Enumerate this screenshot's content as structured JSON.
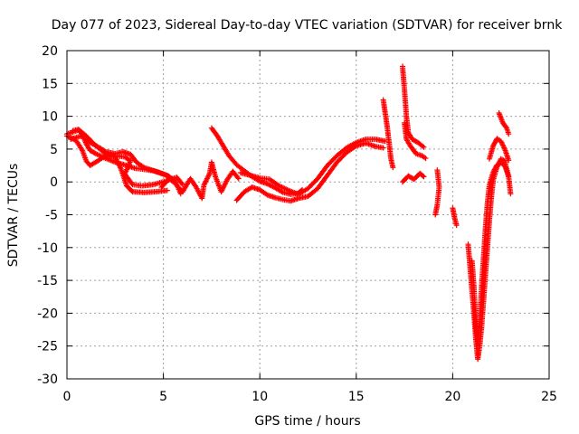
{
  "chart_data": {
    "type": "scatter",
    "title": "Day 077 of 2023, Sidereal Day-to-day VTEC variation (SDTVAR) for receiver brnk",
    "xlabel": "GPS time / hours",
    "ylabel": "SDTVAR / TECUs",
    "xlim": [
      0,
      25
    ],
    "ylim": [
      -30,
      20
    ],
    "xticks": [
      0,
      5,
      10,
      15,
      20,
      25
    ],
    "yticks": [
      20,
      15,
      10,
      5,
      0,
      -5,
      -10,
      -15,
      -20,
      -25,
      -30
    ],
    "grid": true,
    "marker": "plus",
    "color": "#ff0000",
    "tracks": [
      [
        [
          0.0,
          7.3
        ],
        [
          0.3,
          7.6
        ],
        [
          0.6,
          7.9
        ],
        [
          0.8,
          7.2
        ],
        [
          1.0,
          5.8
        ],
        [
          1.2,
          4.8
        ],
        [
          1.5,
          4.3
        ],
        [
          2.0,
          3.6
        ],
        [
          2.5,
          3.0
        ],
        [
          3.0,
          2.6
        ],
        [
          3.5,
          2.1
        ],
        [
          4.0,
          1.9
        ],
        [
          4.5,
          1.7
        ],
        [
          5.0,
          1.2
        ],
        [
          5.3,
          0.8
        ]
      ],
      [
        [
          0.0,
          7.0
        ],
        [
          0.3,
          6.6
        ],
        [
          0.5,
          6.2
        ],
        [
          0.8,
          4.8
        ],
        [
          1.0,
          3.2
        ],
        [
          1.2,
          2.5
        ],
        [
          1.6,
          3.2
        ],
        [
          2.0,
          4.0
        ],
        [
          2.5,
          3.8
        ],
        [
          2.8,
          2.0
        ],
        [
          3.1,
          -0.6
        ],
        [
          3.4,
          -1.5
        ],
        [
          4.0,
          -1.6
        ],
        [
          4.6,
          -1.5
        ],
        [
          5.2,
          -1.3
        ]
      ],
      [
        [
          0.2,
          6.5
        ],
        [
          0.5,
          6.8
        ],
        [
          0.8,
          7.0
        ],
        [
          1.2,
          6.0
        ],
        [
          1.7,
          5.2
        ],
        [
          2.0,
          4.6
        ],
        [
          2.5,
          4.3
        ],
        [
          2.9,
          4.6
        ],
        [
          3.3,
          4.2
        ],
        [
          3.6,
          3.0
        ],
        [
          4.0,
          2.2
        ],
        [
          4.6,
          1.6
        ],
        [
          5.2,
          1.0
        ],
        [
          5.6,
          0.2
        ],
        [
          5.9,
          -1.8
        ]
      ],
      [
        [
          0.3,
          7.8
        ],
        [
          0.6,
          8.0
        ],
        [
          1.0,
          7.0
        ],
        [
          1.5,
          5.5
        ],
        [
          2.0,
          4.3
        ],
        [
          2.5,
          4.0
        ],
        [
          3.0,
          3.8
        ],
        [
          3.3,
          3.2
        ],
        [
          3.0,
          1.2
        ],
        [
          3.4,
          -0.4
        ],
        [
          3.9,
          -0.6
        ],
        [
          4.5,
          -0.4
        ],
        [
          5.2,
          0.2
        ],
        [
          5.7,
          0.7
        ],
        [
          6.0,
          -0.4
        ]
      ],
      [
        [
          4.9,
          -0.8
        ],
        [
          5.3,
          0.5
        ],
        [
          5.6,
          -0.2
        ],
        [
          6.0,
          -1.5
        ],
        [
          6.4,
          0.5
        ],
        [
          6.7,
          -0.8
        ],
        [
          7.0,
          -2.5
        ],
        [
          7.1,
          -0.5
        ],
        [
          7.4,
          1.3
        ],
        [
          7.5,
          3.0
        ],
        [
          7.7,
          0.8
        ],
        [
          8.0,
          -1.5
        ],
        [
          8.3,
          0.3
        ],
        [
          8.6,
          1.6
        ],
        [
          8.9,
          0.5
        ]
      ],
      [
        [
          7.5,
          8.2
        ],
        [
          7.8,
          7.0
        ],
        [
          8.1,
          5.5
        ],
        [
          8.4,
          4.0
        ],
        [
          8.8,
          2.6
        ],
        [
          9.2,
          1.7
        ],
        [
          9.6,
          0.8
        ],
        [
          10.0,
          0.1
        ],
        [
          10.4,
          -0.3
        ],
        [
          10.8,
          -0.9
        ],
        [
          11.2,
          -1.6
        ],
        [
          11.6,
          -1.9
        ],
        [
          12.0,
          -1.7
        ],
        [
          12.2,
          -1.2
        ]
      ],
      [
        [
          8.8,
          -2.8
        ],
        [
          9.2,
          -1.5
        ],
        [
          9.6,
          -0.8
        ],
        [
          10.0,
          -1.2
        ],
        [
          10.4,
          -2.0
        ],
        [
          10.8,
          -2.4
        ],
        [
          11.2,
          -2.7
        ],
        [
          11.6,
          -2.9
        ],
        [
          12.0,
          -2.5
        ],
        [
          12.5,
          -2.2
        ],
        [
          13.0,
          -1.0
        ],
        [
          13.5,
          1.0
        ],
        [
          14.0,
          3.0
        ],
        [
          14.5,
          4.5
        ],
        [
          15.0,
          5.5
        ],
        [
          15.5,
          5.9
        ],
        [
          16.0,
          5.4
        ],
        [
          16.4,
          5.2
        ]
      ],
      [
        [
          9.0,
          1.4
        ],
        [
          9.5,
          1.0
        ],
        [
          10.0,
          0.6
        ],
        [
          10.5,
          0.4
        ],
        [
          11.0,
          -0.6
        ],
        [
          11.5,
          -1.3
        ],
        [
          12.0,
          -1.9
        ],
        [
          12.5,
          -1.0
        ],
        [
          13.0,
          0.5
        ],
        [
          13.5,
          2.5
        ],
        [
          14.0,
          4.0
        ],
        [
          14.5,
          5.2
        ],
        [
          15.0,
          6.0
        ],
        [
          15.5,
          6.5
        ],
        [
          16.0,
          6.5
        ],
        [
          16.5,
          6.2
        ]
      ],
      [
        [
          16.4,
          12.5
        ],
        [
          16.5,
          10.5
        ],
        [
          16.6,
          8.5
        ],
        [
          16.7,
          6.0
        ],
        [
          16.8,
          3.5
        ],
        [
          16.9,
          2.2
        ]
      ],
      [
        [
          17.4,
          17.6
        ],
        [
          17.5,
          14.0
        ],
        [
          17.6,
          10.0
        ],
        [
          17.7,
          7.5
        ],
        [
          17.9,
          6.5
        ],
        [
          18.2,
          6.0
        ],
        [
          18.5,
          5.3
        ]
      ],
      [
        [
          17.5,
          9.0
        ],
        [
          17.6,
          6.5
        ],
        [
          17.8,
          5.5
        ],
        [
          18.1,
          4.3
        ],
        [
          18.4,
          4.0
        ],
        [
          18.6,
          3.6
        ]
      ],
      [
        [
          17.4,
          0.0
        ],
        [
          17.7,
          0.9
        ],
        [
          18.0,
          0.4
        ],
        [
          18.3,
          1.3
        ],
        [
          18.5,
          0.8
        ]
      ],
      [
        [
          19.2,
          1.8
        ],
        [
          19.3,
          -0.8
        ],
        [
          19.2,
          -3.5
        ],
        [
          19.1,
          -5.0
        ]
      ],
      [
        [
          20.0,
          -4.0
        ],
        [
          20.1,
          -5.5
        ],
        [
          20.2,
          -6.6
        ]
      ],
      [
        [
          20.8,
          -9.5
        ],
        [
          20.9,
          -13.0
        ],
        [
          21.0,
          -16.5
        ],
        [
          21.1,
          -20.0
        ],
        [
          21.2,
          -24.0
        ],
        [
          21.3,
          -27.0
        ],
        [
          21.4,
          -25.0
        ],
        [
          21.5,
          -22.0
        ],
        [
          21.6,
          -18.0
        ],
        [
          21.7,
          -14.0
        ],
        [
          21.8,
          -10.0
        ],
        [
          21.9,
          -6.0
        ],
        [
          22.0,
          -2.5
        ],
        [
          22.1,
          0.3
        ],
        [
          22.3,
          2.3
        ],
        [
          22.5,
          3.5
        ],
        [
          22.7,
          3.2
        ],
        [
          22.9,
          0.8
        ],
        [
          23.0,
          -1.8
        ]
      ],
      [
        [
          21.0,
          -12.0
        ],
        [
          21.1,
          -16.0
        ],
        [
          21.2,
          -22.0
        ],
        [
          21.3,
          -24.5
        ],
        [
          21.4,
          -21.0
        ],
        [
          21.5,
          -16.0
        ],
        [
          21.6,
          -11.5
        ],
        [
          21.7,
          -7.0
        ],
        [
          21.8,
          -3.2
        ],
        [
          21.9,
          -0.5
        ],
        [
          22.1,
          1.5
        ],
        [
          22.3,
          2.6
        ],
        [
          22.5,
          2.9
        ],
        [
          22.7,
          2.5
        ],
        [
          22.9,
          0.8
        ]
      ],
      [
        [
          21.9,
          3.5
        ],
        [
          22.1,
          5.5
        ],
        [
          22.3,
          6.6
        ],
        [
          22.5,
          6.2
        ],
        [
          22.7,
          5.0
        ],
        [
          22.9,
          3.3
        ]
      ],
      [
        [
          22.4,
          10.5
        ],
        [
          22.6,
          9.0
        ],
        [
          22.8,
          8.2
        ],
        [
          22.9,
          7.3
        ]
      ]
    ]
  }
}
